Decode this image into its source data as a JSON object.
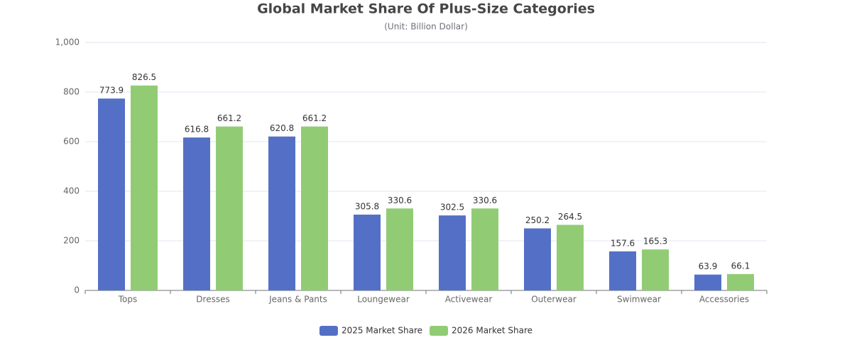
{
  "chart_data": {
    "type": "bar",
    "title": "Global Market Share Of Plus-Size Categories",
    "subtitle": "(Unit:  Billion Dollar)",
    "categories": [
      "Tops",
      "Dresses",
      "Jeans & Pants",
      "Loungewear",
      "Activewear",
      "Outerwear",
      "Swimwear",
      "Accessories"
    ],
    "series": [
      {
        "name": "2025 Market Share",
        "color": "#5470c6",
        "values": [
          773.9,
          616.8,
          620.8,
          305.8,
          302.5,
          250.2,
          157.6,
          63.9
        ]
      },
      {
        "name": "2026 Market Share",
        "color": "#91cc75",
        "values": [
          826.5,
          661.2,
          661.2,
          330.6,
          330.6,
          264.5,
          165.3,
          66.1
        ]
      }
    ],
    "ylim": [
      0,
      1000
    ],
    "yticks": [
      0,
      200,
      400,
      600,
      800,
      {
        "value": 1000,
        "label": "1,000"
      }
    ],
    "grid": true,
    "legend": "bottom"
  }
}
